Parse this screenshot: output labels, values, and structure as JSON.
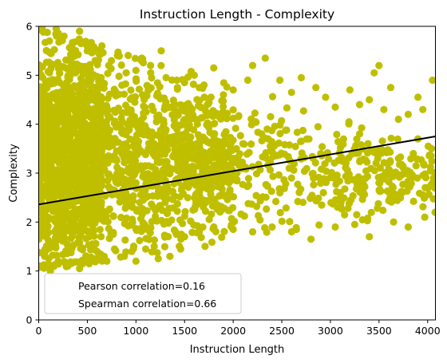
{
  "chart_data": {
    "type": "scatter",
    "title": "Instruction Length - Complexity",
    "xlabel": "Instruction Length",
    "ylabel": "Complexity",
    "xlim": [
      0,
      4080
    ],
    "ylim": [
      0,
      6
    ],
    "xticks": [
      0,
      500,
      1000,
      1500,
      2000,
      2500,
      3000,
      3500,
      4000
    ],
    "yticks": [
      0,
      1,
      2,
      3,
      4,
      5,
      6
    ],
    "grid": false,
    "point_color": "#bfbf00",
    "fit_line": {
      "color": "#000000",
      "points": [
        [
          0,
          2.36
        ],
        [
          4080,
          3.75
        ]
      ]
    },
    "legend": {
      "placement": "lower-left",
      "entries": [
        "Pearson correlation=0.16",
        "Spearman correlation=0.66"
      ]
    },
    "series": [
      {
        "values": [
          [
            20,
            1.1
          ],
          [
            60,
            1.3
          ],
          [
            120,
            1.0
          ],
          [
            200,
            1.2
          ],
          [
            300,
            1.1
          ],
          [
            420,
            1.05
          ],
          [
            520,
            1.15
          ],
          [
            40,
            5.9
          ],
          [
            110,
            5.7
          ],
          [
            180,
            5.95
          ],
          [
            260,
            5.8
          ],
          [
            340,
            5.6
          ],
          [
            420,
            5.9
          ],
          [
            500,
            5.5
          ],
          [
            580,
            5.3
          ],
          [
            650,
            5.6
          ],
          [
            720,
            5.2
          ],
          [
            810,
            5.4
          ],
          [
            900,
            5.05
          ],
          [
            1000,
            5.1
          ],
          [
            1060,
            5.35
          ],
          [
            1150,
            5.2
          ],
          [
            1260,
            5.5
          ],
          [
            1310,
            4.95
          ],
          [
            1420,
            4.9
          ],
          [
            1500,
            4.85
          ],
          [
            1600,
            5.0
          ],
          [
            1700,
            4.8
          ],
          [
            1800,
            5.15
          ],
          [
            1900,
            4.6
          ],
          [
            2000,
            4.7
          ],
          [
            2150,
            4.9
          ],
          [
            2200,
            5.2
          ],
          [
            2330,
            5.35
          ],
          [
            2480,
            4.9
          ],
          [
            2600,
            4.65
          ],
          [
            2700,
            4.95
          ],
          [
            2850,
            4.75
          ],
          [
            2950,
            4.55
          ],
          [
            3050,
            4.35
          ],
          [
            3200,
            4.7
          ],
          [
            3300,
            4.4
          ],
          [
            3400,
            4.5
          ],
          [
            3450,
            5.05
          ],
          [
            3500,
            5.2
          ],
          [
            3550,
            4.3
          ],
          [
            3620,
            4.75
          ],
          [
            3700,
            4.1
          ],
          [
            3800,
            4.2
          ],
          [
            3900,
            4.55
          ],
          [
            3950,
            4.3
          ],
          [
            4050,
            4.9
          ],
          [
            600,
            1.4
          ],
          [
            700,
            1.2
          ],
          [
            780,
            1.45
          ],
          [
            880,
            1.3
          ],
          [
            1000,
            1.2
          ],
          [
            1100,
            1.45
          ],
          [
            1230,
            1.25
          ],
          [
            1350,
            1.3
          ],
          [
            1460,
            1.45
          ],
          [
            1500,
            1.7
          ],
          [
            1650,
            1.8
          ],
          [
            1800,
            1.9
          ],
          [
            2000,
            1.85
          ],
          [
            2200,
            1.8
          ],
          [
            2400,
            1.9
          ],
          [
            2650,
            1.85
          ],
          [
            2800,
            1.65
          ],
          [
            3050,
            1.9
          ],
          [
            3250,
            1.95
          ],
          [
            3400,
            1.7
          ],
          [
            3650,
            2.0
          ],
          [
            3800,
            1.9
          ],
          [
            3970,
            2.1
          ],
          [
            1850,
            3.2
          ],
          [
            2100,
            3.6
          ],
          [
            2350,
            3.9
          ],
          [
            2600,
            2.9
          ],
          [
            2900,
            3.4
          ],
          [
            3100,
            2.6
          ],
          [
            3300,
            3.8
          ],
          [
            3500,
            2.8
          ],
          [
            3700,
            3.3
          ],
          [
            3900,
            3.7
          ],
          [
            4060,
            2.9
          ],
          [
            4040,
            3.5
          ]
        ]
      }
    ]
  }
}
